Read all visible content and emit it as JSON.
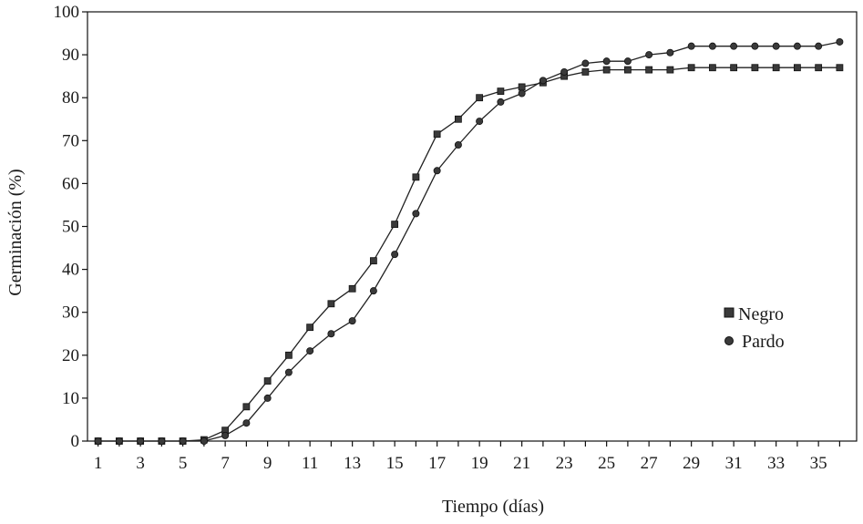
{
  "chart_data": {
    "type": "line",
    "xlabel": "Tiempo (días)",
    "ylabel": "Germinación (%)",
    "xlim": [
      0.5,
      36.8
    ],
    "ylim": [
      0,
      100
    ],
    "x_ticks": [
      1,
      3,
      5,
      7,
      9,
      11,
      13,
      15,
      17,
      19,
      21,
      23,
      25,
      27,
      29,
      31,
      33,
      35
    ],
    "y_ticks": [
      0,
      10,
      20,
      30,
      40,
      50,
      60,
      70,
      80,
      90,
      100
    ],
    "grid": false,
    "legend_position": "right",
    "x": [
      1,
      2,
      3,
      4,
      5,
      6,
      7,
      8,
      9,
      10,
      11,
      12,
      13,
      14,
      15,
      16,
      17,
      18,
      19,
      20,
      21,
      22,
      23,
      24,
      25,
      26,
      27,
      28,
      29,
      30,
      31,
      32,
      33,
      34,
      35,
      36
    ],
    "series": [
      {
        "name": "Negro",
        "marker": "square",
        "color": "#333333",
        "values": [
          0,
          0,
          0,
          0,
          0,
          0.3,
          2.5,
          8,
          14,
          20,
          26.5,
          32,
          35.5,
          42,
          50.5,
          61.5,
          71.5,
          75,
          80,
          81.5,
          82.5,
          83.5,
          85,
          86,
          86.5,
          86.5,
          86.5,
          86.5,
          87,
          87,
          87,
          87,
          87,
          87,
          87,
          87
        ]
      },
      {
        "name": "Pardo",
        "marker": "circle",
        "color": "#333333",
        "values": [
          0,
          0,
          0,
          0,
          0,
          0,
          1.3,
          4.2,
          10,
          16,
          21,
          25,
          28,
          35,
          43.5,
          53,
          63,
          69,
          74.5,
          79,
          81,
          84,
          86,
          88,
          88.5,
          88.5,
          90,
          90.5,
          92,
          92,
          92,
          92,
          92,
          92,
          92,
          93
        ]
      }
    ]
  }
}
